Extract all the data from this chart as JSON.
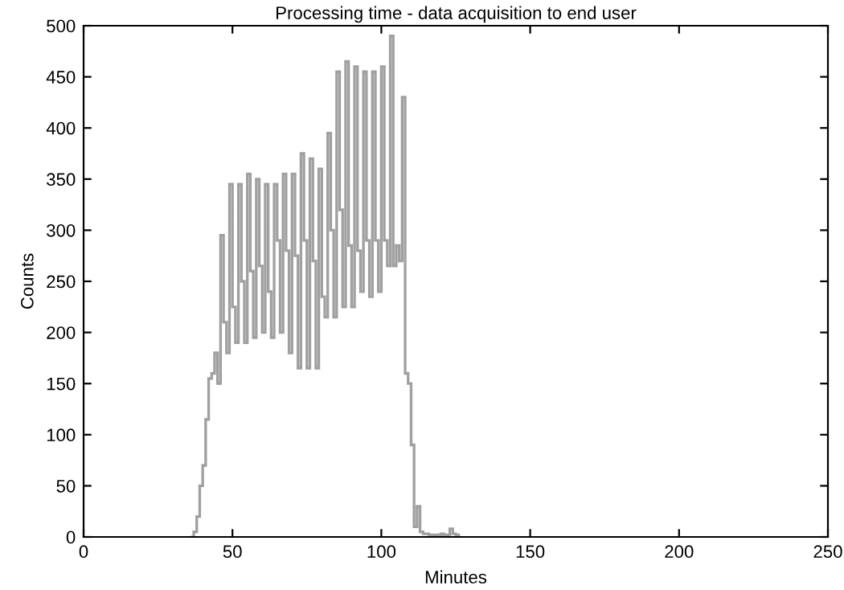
{
  "chart_data": {
    "type": "histogram",
    "title": "Processing time - data acquisition to end user",
    "xlabel": "Minutes",
    "ylabel": "Counts",
    "bins": [
      36,
      37,
      38,
      39,
      40,
      41,
      42,
      43,
      44,
      45,
      46,
      47,
      48,
      49,
      50,
      51,
      52,
      53,
      54,
      55,
      56,
      57,
      58,
      59,
      60,
      61,
      62,
      63,
      64,
      65,
      66,
      67,
      68,
      69,
      70,
      71,
      72,
      73,
      74,
      75,
      76,
      77,
      78,
      79,
      80,
      81,
      82,
      83,
      84,
      85,
      86,
      87,
      88,
      89,
      90,
      91,
      92,
      93,
      94,
      95,
      96,
      97,
      98,
      99,
      100,
      101,
      102,
      103,
      104,
      105,
      106,
      107,
      108,
      109,
      110,
      111,
      112,
      113,
      114,
      115,
      116,
      117,
      118,
      119,
      120,
      121,
      122,
      123,
      124,
      125,
      126
    ],
    "values": [
      0,
      5,
      20,
      50,
      70,
      115,
      155,
      160,
      180,
      150,
      295,
      210,
      180,
      345,
      225,
      190,
      345,
      250,
      190,
      355,
      260,
      195,
      350,
      265,
      200,
      345,
      240,
      195,
      345,
      290,
      200,
      355,
      280,
      180,
      355,
      275,
      165,
      375,
      290,
      165,
      370,
      270,
      165,
      360,
      235,
      215,
      395,
      300,
      215,
      455,
      320,
      225,
      465,
      285,
      225,
      460,
      280,
      240,
      455,
      290,
      235,
      455,
      290,
      240,
      460,
      290,
      265,
      490,
      265,
      285,
      270,
      430,
      160,
      150,
      90,
      10,
      30,
      5,
      3,
      3,
      2,
      2,
      2,
      2,
      3,
      2,
      2,
      8,
      3,
      2
    ],
    "color": "#a0a0a0",
    "xlim": [
      0,
      250
    ],
    "ylim": [
      0,
      500
    ],
    "xticks": [
      0,
      50,
      100,
      150,
      200,
      250
    ],
    "yticks": [
      0,
      50,
      100,
      150,
      200,
      250,
      300,
      350,
      400,
      450,
      500
    ],
    "grid": false
  }
}
